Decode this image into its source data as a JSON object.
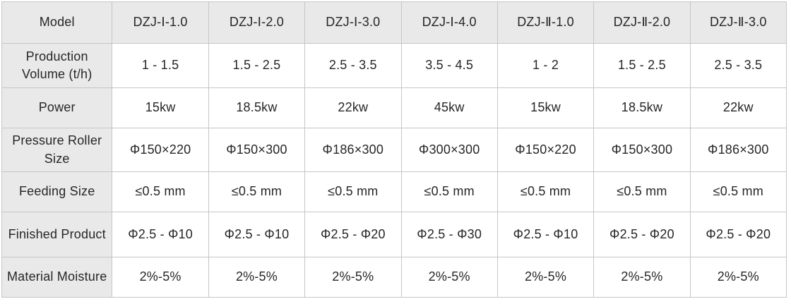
{
  "colors": {
    "header_bg": "#e9e9e9",
    "cell_bg": "#ffffff",
    "inner_border": "#c6c6c6",
    "outer_border": "#ababab",
    "text": "#262626"
  },
  "table": {
    "corner_label": "Model",
    "models": [
      "DZJ-Ⅰ-1.0",
      "DZJ-Ⅰ-2.0",
      "DZJ-Ⅰ-3.0",
      "DZJ-Ⅰ-4.0",
      "DZJ-Ⅱ-1.0",
      "DZJ-Ⅱ-2.0",
      "DZJ-Ⅱ-3.0"
    ],
    "rows": [
      {
        "label": "Production Volume (t/h)",
        "values": [
          "1 - 1.5",
          "1.5 - 2.5",
          "2.5 - 3.5",
          "3.5 - 4.5",
          "1 - 2",
          "1.5 - 2.5",
          "2.5 - 3.5"
        ]
      },
      {
        "label": "Power",
        "values": [
          "15kw",
          "18.5kw",
          "22kw",
          "45kw",
          "15kw",
          "18.5kw",
          "22kw"
        ]
      },
      {
        "label": "Pressure Roller Size",
        "values": [
          "Φ150×220",
          "Φ150×300",
          "Φ186×300",
          "Φ300×300",
          "Φ150×220",
          "Φ150×300",
          "Φ186×300"
        ]
      },
      {
        "label": "Feeding Size",
        "values": [
          "≤0.5 mm",
          "≤0.5 mm",
          "≤0.5 mm",
          "≤0.5 mm",
          "≤0.5 mm",
          "≤0.5 mm",
          "≤0.5 mm"
        ]
      },
      {
        "label": "Finished Product",
        "values": [
          "Φ2.5 - Φ10",
          "Φ2.5 - Φ10",
          "Φ2.5 - Φ20",
          "Φ2.5 - Φ30",
          "Φ2.5 - Φ10",
          "Φ2.5 - Φ20",
          "Φ2.5 - Φ20"
        ]
      },
      {
        "label": "Material Moisture",
        "values": [
          "2%-5%",
          "2%-5%",
          "2%-5%",
          "2%-5%",
          "2%-5%",
          "2%-5%",
          "2%-5%"
        ]
      }
    ]
  },
  "chart_data": {
    "type": "table",
    "title": "Product model specifications",
    "columns": [
      "Model",
      "DZJ-Ⅰ-1.0",
      "DZJ-Ⅰ-2.0",
      "DZJ-Ⅰ-3.0",
      "DZJ-Ⅰ-4.0",
      "DZJ-Ⅱ-1.0",
      "DZJ-Ⅱ-2.0",
      "DZJ-Ⅱ-3.0"
    ],
    "rows": [
      [
        "Production Volume (t/h)",
        "1 - 1.5",
        "1.5 - 2.5",
        "2.5 - 3.5",
        "3.5 - 4.5",
        "1 - 2",
        "1.5 - 2.5",
        "2.5 - 3.5"
      ],
      [
        "Power",
        "15kw",
        "18.5kw",
        "22kw",
        "45kw",
        "15kw",
        "18.5kw",
        "22kw"
      ],
      [
        "Pressure Roller Size",
        "Φ150×220",
        "Φ150×300",
        "Φ186×300",
        "Φ300×300",
        "Φ150×220",
        "Φ150×300",
        "Φ186×300"
      ],
      [
        "Feeding Size",
        "≤0.5 mm",
        "≤0.5 mm",
        "≤0.5 mm",
        "≤0.5 mm",
        "≤0.5 mm",
        "≤0.5 mm",
        "≤0.5 mm"
      ],
      [
        "Finished Product",
        "Φ2.5 - Φ10",
        "Φ2.5 - Φ10",
        "Φ2.5 - Φ20",
        "Φ2.5 - Φ30",
        "Φ2.5 - Φ10",
        "Φ2.5 - Φ20",
        "Φ2.5 - Φ20"
      ],
      [
        "Material Moisture",
        "2%-5%",
        "2%-5%",
        "2%-5%",
        "2%-5%",
        "2%-5%",
        "2%-5%",
        "2%-5%"
      ]
    ]
  }
}
